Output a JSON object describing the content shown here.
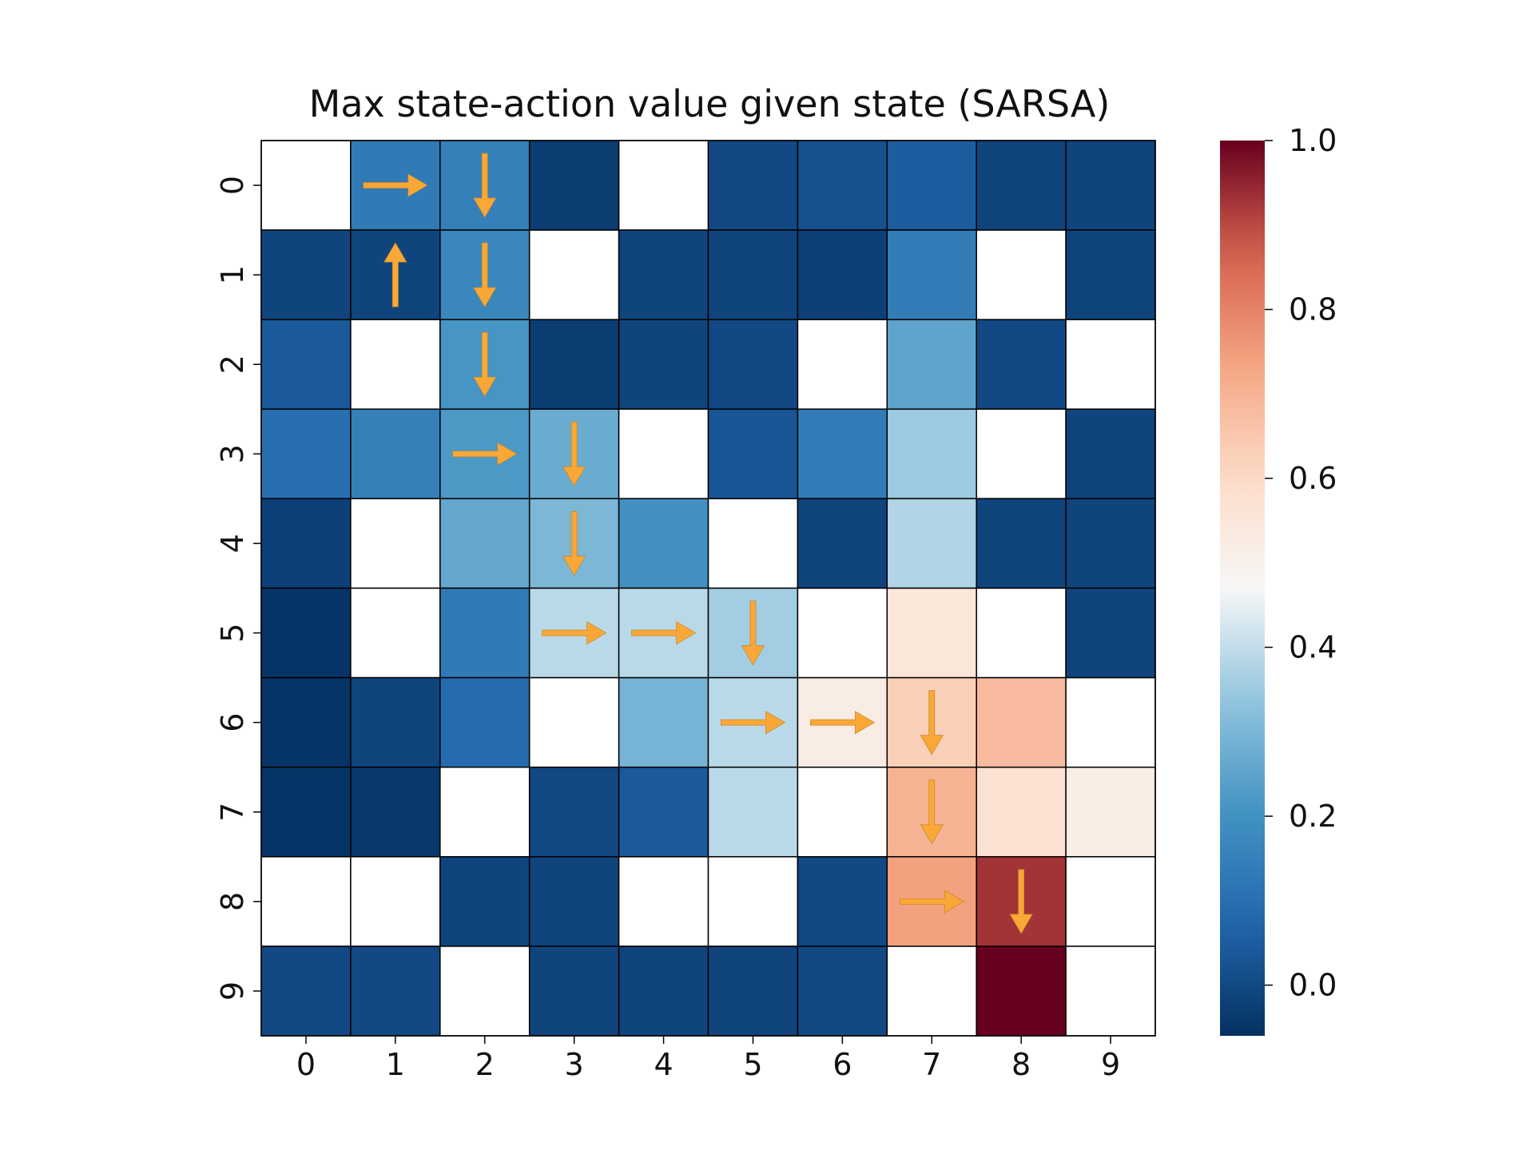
{
  "chart_data": {
    "type": "heatmap",
    "title": "Max state-action value given state (SARSA)",
    "xlabel": "",
    "ylabel": "",
    "x_tick_labels": [
      "0",
      "1",
      "2",
      "3",
      "4",
      "5",
      "6",
      "7",
      "8",
      "9"
    ],
    "y_tick_labels": [
      "0",
      "1",
      "2",
      "3",
      "4",
      "5",
      "6",
      "7",
      "8",
      "9"
    ],
    "colormap": "RdBu_r",
    "vmin": -0.06,
    "vmax": 1.0,
    "colorbar_ticks": [
      {
        "value": 0.0,
        "label": "0.0"
      },
      {
        "value": 0.2,
        "label": "0.2"
      },
      {
        "value": 0.4,
        "label": "0.4"
      },
      {
        "value": 0.6,
        "label": "0.6"
      },
      {
        "value": 0.8,
        "label": "0.8"
      },
      {
        "value": 1.0,
        "label": "1.0"
      }
    ],
    "values": [
      [
        null,
        0.13,
        0.15,
        -0.03,
        null,
        0.0,
        0.02,
        0.05,
        -0.01,
        -0.01
      ],
      [
        -0.01,
        -0.01,
        0.17,
        null,
        -0.01,
        -0.01,
        -0.02,
        0.14,
        null,
        -0.01
      ],
      [
        0.04,
        null,
        0.21,
        -0.03,
        -0.01,
        0.0,
        null,
        0.25,
        0.0,
        null
      ],
      [
        0.1,
        0.15,
        0.22,
        0.27,
        null,
        0.03,
        0.14,
        0.35,
        null,
        -0.01
      ],
      [
        -0.02,
        null,
        0.26,
        0.3,
        0.2,
        null,
        -0.01,
        0.38,
        -0.01,
        -0.01
      ],
      [
        -0.05,
        null,
        0.13,
        0.39,
        0.39,
        0.36,
        null,
        0.55,
        null,
        -0.01
      ],
      [
        -0.05,
        -0.01,
        0.09,
        null,
        0.29,
        0.39,
        0.52,
        0.63,
        0.68,
        null
      ],
      [
        -0.05,
        -0.04,
        null,
        0.0,
        0.04,
        0.39,
        null,
        0.7,
        0.57,
        0.52
      ],
      [
        null,
        null,
        -0.01,
        -0.01,
        null,
        null,
        0.0,
        0.74,
        0.93,
        null
      ],
      [
        0.0,
        0.0,
        null,
        -0.01,
        -0.01,
        -0.01,
        0.0,
        null,
        1.0,
        null
      ]
    ],
    "arrows": [
      {
        "row": 0,
        "col": 1,
        "dir": "right"
      },
      {
        "row": 0,
        "col": 2,
        "dir": "down"
      },
      {
        "row": 1,
        "col": 1,
        "dir": "up"
      },
      {
        "row": 1,
        "col": 2,
        "dir": "down"
      },
      {
        "row": 2,
        "col": 2,
        "dir": "down"
      },
      {
        "row": 3,
        "col": 2,
        "dir": "right"
      },
      {
        "row": 3,
        "col": 3,
        "dir": "down"
      },
      {
        "row": 4,
        "col": 3,
        "dir": "down"
      },
      {
        "row": 5,
        "col": 3,
        "dir": "right"
      },
      {
        "row": 5,
        "col": 4,
        "dir": "right"
      },
      {
        "row": 5,
        "col": 5,
        "dir": "down"
      },
      {
        "row": 6,
        "col": 5,
        "dir": "right"
      },
      {
        "row": 6,
        "col": 6,
        "dir": "right"
      },
      {
        "row": 6,
        "col": 7,
        "dir": "down"
      },
      {
        "row": 7,
        "col": 7,
        "dir": "down"
      },
      {
        "row": 8,
        "col": 7,
        "dir": "right"
      },
      {
        "row": 8,
        "col": 8,
        "dir": "down"
      }
    ],
    "arrow_color": "#f9a838",
    "grid": true,
    "legend": "colorbar-right"
  }
}
